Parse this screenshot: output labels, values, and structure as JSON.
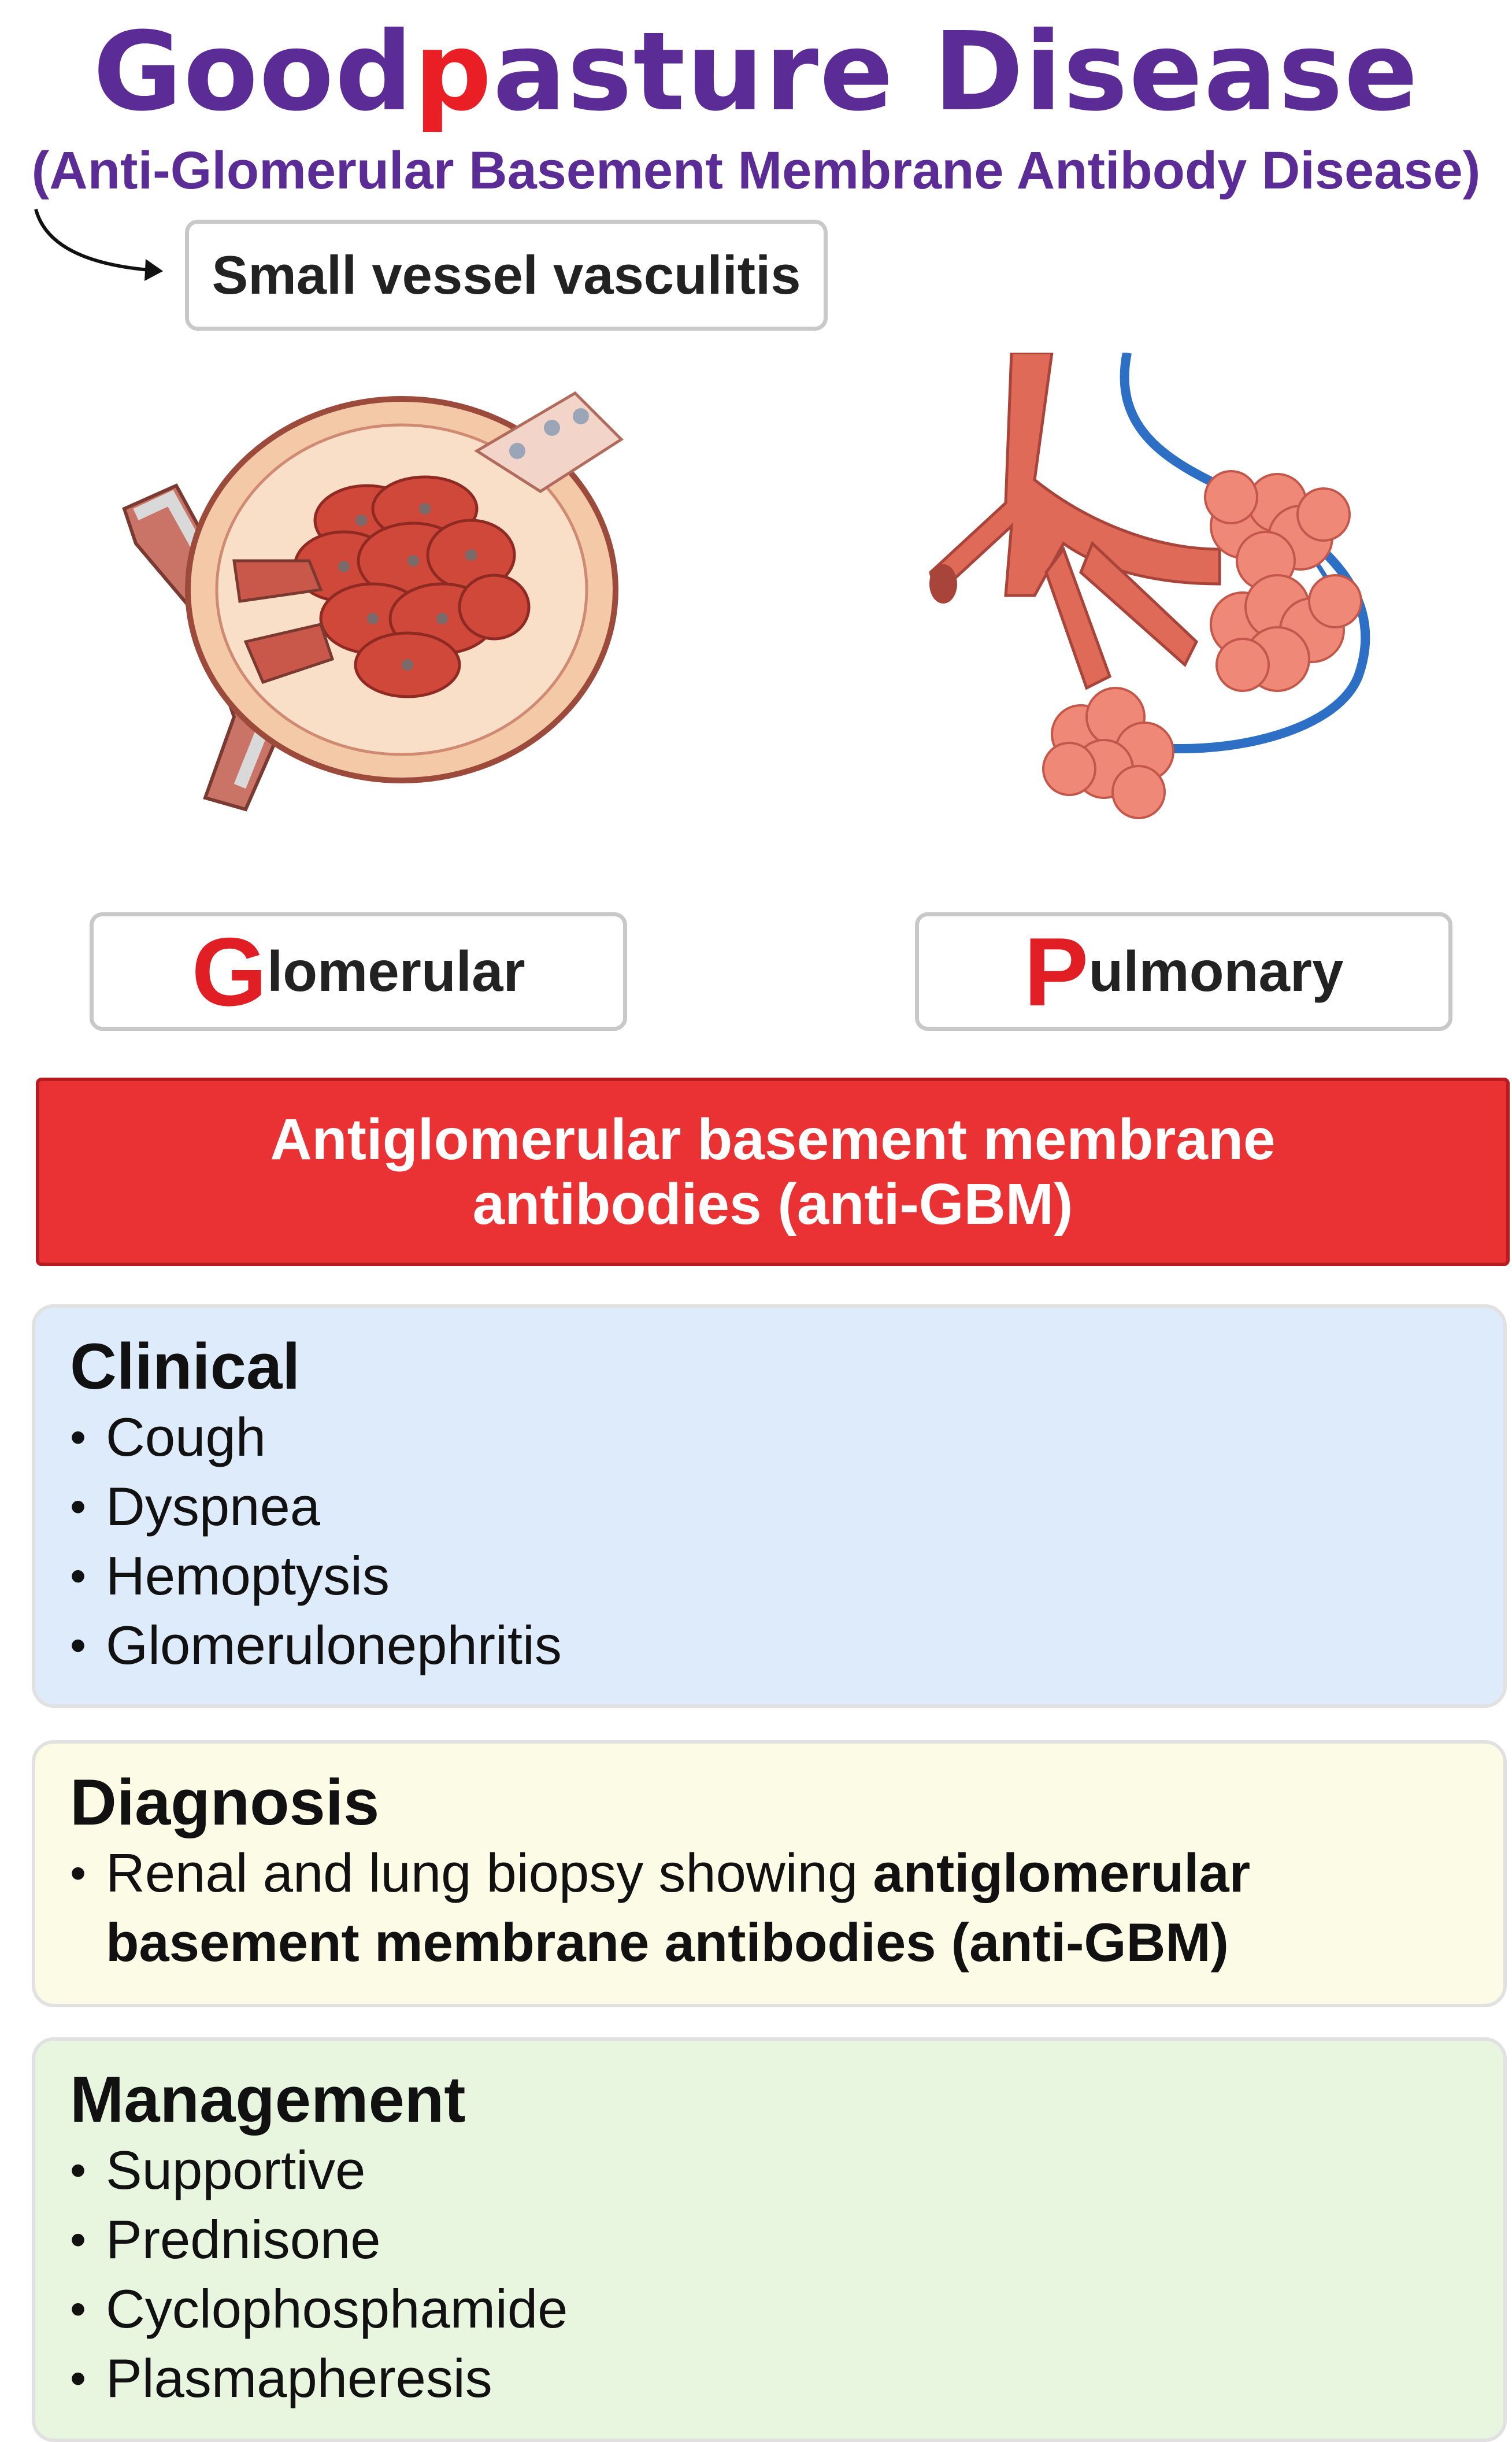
{
  "title": {
    "first": "Good",
    "highlight": "p",
    "rest": "asture Disease"
  },
  "subtitle": "(Anti-Glomerular Basement Membrane Antibody Disease)",
  "category_label": "Small vessel vasculitis",
  "organs": {
    "glomerular": {
      "initial": "G",
      "rest": "lomerular"
    },
    "pulmonary": {
      "initial": "P",
      "rest": "ulmonary"
    }
  },
  "banner": {
    "line1": "Antiglomerular basement membrane",
    "line2": "antibodies (anti-GBM)"
  },
  "clinical": {
    "heading": "Clinical",
    "items": [
      "Cough",
      "Dyspnea",
      "Hemoptysis",
      "Glomerulonephritis"
    ]
  },
  "diagnosis": {
    "heading": "Diagnosis",
    "text_plain": "Renal and lung biopsy showing ",
    "text_bold_1": "antiglomerular",
    "text_bold_2": "basement membrane antibodies (anti-GBM)"
  },
  "management": {
    "heading": "Management",
    "items": [
      "Supportive",
      "Prednisone",
      "Cyclophosphamide",
      "Plasmapheresis"
    ]
  },
  "colors": {
    "title_purple": "#5b2c96",
    "accent_red": "#ea1f25",
    "banner_red": "#ea3234",
    "clinical_bg": "#deebfb",
    "diagnosis_bg": "#fbfbe6",
    "management_bg": "#e8f6df"
  }
}
